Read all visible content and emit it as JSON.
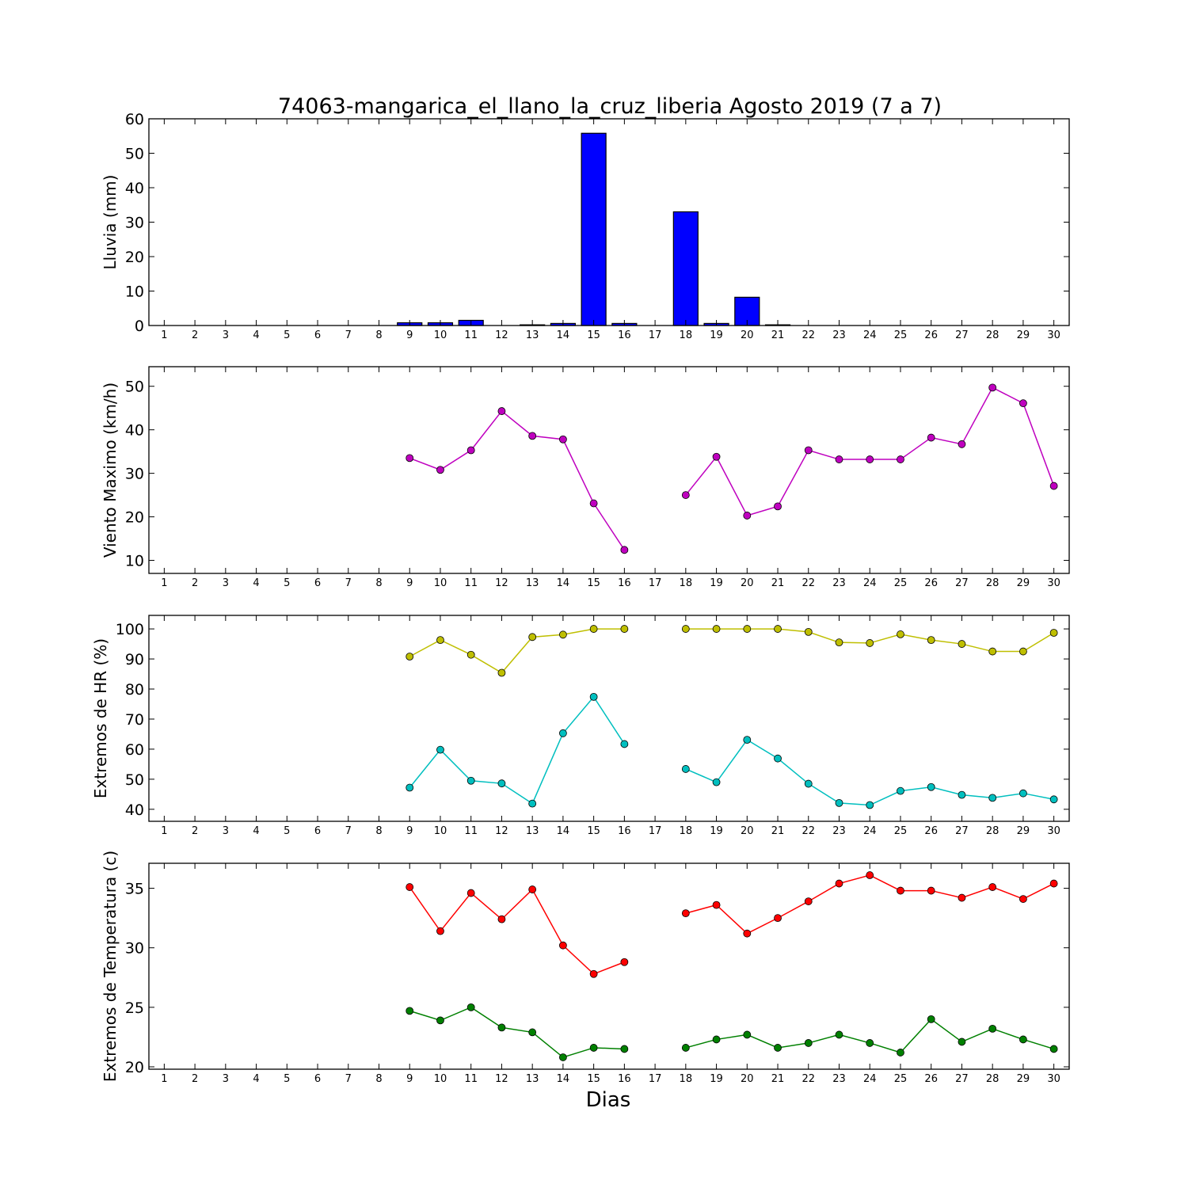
{
  "title": "74063-mangarica_el_llano_la_cruz_liberia Agosto 2019  (7 a 7)",
  "xlabel": "Dias",
  "chart_data": [
    {
      "type": "bar",
      "ylabel": "Lluvia (mm)",
      "x": [
        1,
        2,
        3,
        4,
        5,
        6,
        7,
        8,
        9,
        10,
        11,
        12,
        13,
        14,
        15,
        16,
        17,
        18,
        19,
        20,
        21,
        22,
        23,
        24,
        25,
        26,
        27,
        28,
        29,
        30
      ],
      "xlim": [
        0.5,
        30.5
      ],
      "ylim": [
        0,
        60
      ],
      "yticks": [
        0,
        10,
        20,
        30,
        40,
        50,
        60
      ],
      "values": [
        null,
        null,
        null,
        null,
        null,
        null,
        null,
        null,
        0.8,
        0.8,
        1.5,
        0,
        0.2,
        0.6,
        55.8,
        0.6,
        null,
        33.0,
        0.6,
        8.2,
        0.2,
        0,
        0,
        0,
        0,
        0,
        0,
        0,
        0,
        0
      ],
      "color": "#0000ff"
    },
    {
      "type": "line",
      "ylabel": "Viento Maximo (km/h)",
      "x": [
        1,
        2,
        3,
        4,
        5,
        6,
        7,
        8,
        9,
        10,
        11,
        12,
        13,
        14,
        15,
        16,
        17,
        18,
        19,
        20,
        21,
        22,
        23,
        24,
        25,
        26,
        27,
        28,
        29,
        30
      ],
      "xlim": [
        0.5,
        30.5
      ],
      "ylim": [
        7,
        54.5
      ],
      "yticks": [
        10,
        20,
        30,
        40,
        50
      ],
      "series": [
        {
          "values": [
            null,
            null,
            null,
            null,
            null,
            null,
            null,
            null,
            33.5,
            30.8,
            35.3,
            44.3,
            38.6,
            37.8,
            23.1,
            12.4,
            null,
            25.0,
            33.8,
            20.3,
            22.4,
            35.3,
            33.2,
            33.2,
            33.2,
            38.2,
            36.7,
            49.7,
            46.1,
            27.1
          ],
          "color": "#bf00bf"
        }
      ]
    },
    {
      "type": "line",
      "ylabel": "Extremos de HR (%)",
      "x": [
        1,
        2,
        3,
        4,
        5,
        6,
        7,
        8,
        9,
        10,
        11,
        12,
        13,
        14,
        15,
        16,
        17,
        18,
        19,
        20,
        21,
        22,
        23,
        24,
        25,
        26,
        27,
        28,
        29,
        30
      ],
      "xlim": [
        0.5,
        30.5
      ],
      "ylim": [
        36,
        104.5
      ],
      "yticks": [
        40,
        50,
        60,
        70,
        80,
        90,
        100
      ],
      "series": [
        {
          "values": [
            null,
            null,
            null,
            null,
            null,
            null,
            null,
            null,
            90.8,
            96.3,
            91.4,
            85.4,
            97.3,
            98.1,
            100,
            100,
            null,
            100,
            100,
            100,
            100,
            99,
            95.5,
            95.3,
            98.2,
            96.3,
            95,
            92.5,
            92.5,
            98.7
          ],
          "color": "#bfbf00"
        },
        {
          "values": [
            null,
            null,
            null,
            null,
            null,
            null,
            null,
            null,
            47.2,
            59.8,
            49.5,
            48.6,
            41.9,
            65.3,
            77.4,
            61.7,
            null,
            53.4,
            49,
            63.1,
            56.9,
            48.5,
            42.1,
            41.4,
            46.1,
            47.4,
            44.8,
            43.8,
            45.3,
            43.3
          ],
          "color": "#00bfbf"
        }
      ]
    },
    {
      "type": "line",
      "ylabel": "Extremos de Temperatura (c)",
      "x": [
        1,
        2,
        3,
        4,
        5,
        6,
        7,
        8,
        9,
        10,
        11,
        12,
        13,
        14,
        15,
        16,
        17,
        18,
        19,
        20,
        21,
        22,
        23,
        24,
        25,
        26,
        27,
        28,
        29,
        30
      ],
      "xlim": [
        0.5,
        30.5
      ],
      "ylim": [
        19.8,
        37.1
      ],
      "yticks": [
        20,
        25,
        30,
        35
      ],
      "series": [
        {
          "values": [
            null,
            null,
            null,
            null,
            null,
            null,
            null,
            null,
            35.1,
            31.4,
            34.6,
            32.4,
            34.9,
            30.2,
            27.8,
            28.8,
            null,
            32.9,
            33.6,
            31.2,
            32.5,
            33.9,
            35.4,
            36.1,
            34.8,
            34.8,
            34.2,
            35.1,
            34.1,
            35.4
          ],
          "color": "#ff0000"
        },
        {
          "values": [
            null,
            null,
            null,
            null,
            null,
            null,
            null,
            null,
            24.7,
            23.9,
            25.0,
            23.3,
            22.9,
            20.8,
            21.6,
            21.5,
            null,
            21.6,
            22.3,
            22.7,
            21.6,
            22.0,
            22.7,
            22.0,
            21.2,
            24.0,
            22.1,
            23.2,
            22.3,
            21.5
          ],
          "color": "#008000"
        }
      ]
    }
  ]
}
